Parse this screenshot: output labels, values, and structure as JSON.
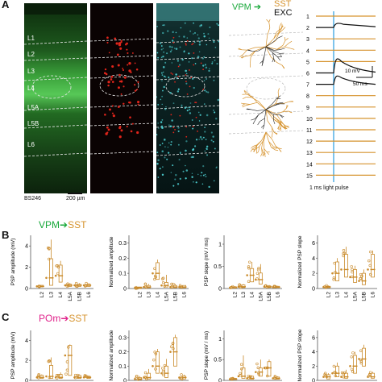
{
  "panel_a": {
    "letter": "A",
    "layers": [
      "L1",
      "L2",
      "L3",
      "L4",
      "L5A",
      "L5B",
      "L6"
    ],
    "slice_id": "BS246",
    "scalebar": "200 µm",
    "legend": {
      "source": "VPM",
      "target": "SST",
      "other": "EXC"
    },
    "trace_numbers": [
      "1",
      "2",
      "3",
      "4",
      "5",
      "6",
      "7",
      "8",
      "9",
      "10",
      "11",
      "12",
      "13",
      "14",
      "15"
    ],
    "amp_scale": "10 mV",
    "time_scale": "50 ms",
    "pulse_label": "1 ms light pulse",
    "colors": {
      "green": "#2aa02a",
      "red": "#e0251b",
      "cyan": "#4fd3d6",
      "orange": "#d6932e",
      "blue": "#2a9de0"
    }
  },
  "panel_b": {
    "letter": "B",
    "condition": {
      "source": "VPM",
      "target": "SST",
      "source_color": "#18a83a"
    }
  },
  "panel_c": {
    "letter": "C",
    "condition": {
      "source": "POm",
      "target": "SST",
      "source_color": "#e0248c"
    }
  },
  "chart_data": [
    {
      "type": "box",
      "panel": "B",
      "ylabel": "PSP amplitude (mV)",
      "categories": [
        "L2",
        "L3",
        "L4",
        "L5A",
        "L5B",
        "L6"
      ],
      "yticks": [
        0,
        2,
        4
      ],
      "ylim": [
        0,
        5
      ],
      "medians": [
        0.2,
        1.0,
        1.2,
        0.3,
        0.3,
        0.3
      ],
      "q1": [
        0.15,
        0.3,
        0.6,
        0.2,
        0.2,
        0.2
      ],
      "q3": [
        0.3,
        2.8,
        2.2,
        0.4,
        0.4,
        0.4
      ],
      "max": [
        0.3,
        4.6,
        2.6,
        0.5,
        0.5,
        0.5
      ]
    },
    {
      "type": "box",
      "panel": "B",
      "ylabel": "Normalized amplitude",
      "categories": [
        "L2",
        "L3",
        "L4",
        "L5A",
        "L5B",
        "L6"
      ],
      "yticks": [
        0,
        0.1,
        0.2,
        0.3
      ],
      "ylim": [
        0,
        0.35
      ],
      "medians": [
        0.005,
        0.01,
        0.1,
        0.02,
        0.01,
        0.01
      ],
      "q1": [
        0.0,
        0.005,
        0.06,
        0.01,
        0.005,
        0.005
      ],
      "q3": [
        0.01,
        0.02,
        0.17,
        0.04,
        0.02,
        0.02
      ],
      "max": [
        0.01,
        0.03,
        0.19,
        0.09,
        0.03,
        0.02
      ]
    },
    {
      "type": "box",
      "panel": "B",
      "ylabel": "PSP slope (mV / ms)",
      "categories": [
        "L2",
        "L3",
        "L4",
        "L5A",
        "L5B",
        "L6"
      ],
      "yticks": [
        0,
        0.5,
        1
      ],
      "ylim": [
        0,
        1.2
      ],
      "medians": [
        0.02,
        0.04,
        0.3,
        0.2,
        0.04,
        0.03
      ],
      "q1": [
        0.01,
        0.02,
        0.15,
        0.1,
        0.02,
        0.02
      ],
      "q3": [
        0.04,
        0.08,
        0.45,
        0.35,
        0.06,
        0.05
      ],
      "max": [
        0.05,
        0.1,
        0.6,
        0.55,
        0.08,
        0.06
      ]
    },
    {
      "type": "box",
      "panel": "B",
      "ylabel": "Normalized PSP slope",
      "categories": [
        "L2",
        "L3",
        "L4",
        "L5A",
        "L5B",
        "L6"
      ],
      "yticks": [
        0,
        2,
        4,
        6
      ],
      "ylim": [
        0,
        7
      ],
      "medians": [
        0.2,
        2.0,
        2.5,
        1.5,
        1.0,
        2.5
      ],
      "q1": [
        0.1,
        1.0,
        1.5,
        0.8,
        0.5,
        1.5
      ],
      "q3": [
        0.3,
        3.5,
        4.5,
        2.5,
        2.0,
        4.5
      ],
      "max": [
        0.4,
        4.0,
        5.5,
        3.0,
        2.5,
        5.0
      ]
    },
    {
      "type": "box",
      "panel": "C",
      "ylabel": "PSP amplitude (mV)",
      "categories": [
        "L2",
        "L3",
        "L4",
        "L5A",
        "L5B",
        "L6"
      ],
      "yticks": [
        0,
        2,
        4
      ],
      "ylim": [
        0,
        5
      ],
      "medians": [
        0.3,
        0.4,
        0.3,
        2.5,
        0.3,
        0.3
      ],
      "q1": [
        0.2,
        0.2,
        0.2,
        0.5,
        0.2,
        0.2
      ],
      "q3": [
        0.5,
        1.5,
        0.6,
        3.5,
        0.5,
        0.4
      ],
      "max": [
        0.6,
        2.3,
        0.8,
        3.6,
        0.6,
        0.5
      ]
    },
    {
      "type": "box",
      "panel": "C",
      "ylabel": "Normalized amplitude",
      "categories": [
        "L2",
        "L3",
        "L4",
        "L5A",
        "L5B",
        "L6"
      ],
      "yticks": [
        0,
        0.1,
        0.2,
        0.3
      ],
      "ylim": [
        0,
        0.35
      ],
      "medians": [
        0.01,
        0.02,
        0.1,
        0.05,
        0.2,
        0.02
      ],
      "q1": [
        0.005,
        0.01,
        0.05,
        0.02,
        0.1,
        0.01
      ],
      "q3": [
        0.02,
        0.05,
        0.2,
        0.1,
        0.3,
        0.03
      ],
      "max": [
        0.03,
        0.08,
        0.22,
        0.15,
        0.32,
        0.04
      ]
    },
    {
      "type": "box",
      "panel": "C",
      "ylabel": "PSP slope (mV / ms)",
      "categories": [
        "L2",
        "L3",
        "L4",
        "L5A",
        "L5B",
        "L6"
      ],
      "yticks": [
        0,
        0.5,
        1
      ],
      "ylim": [
        0,
        1.2
      ],
      "medians": [
        0.03,
        0.1,
        0.05,
        0.2,
        0.3,
        0.05
      ],
      "q1": [
        0.02,
        0.05,
        0.03,
        0.1,
        0.1,
        0.03
      ],
      "q3": [
        0.05,
        0.3,
        0.1,
        0.3,
        0.45,
        0.08
      ],
      "max": [
        0.06,
        0.6,
        0.12,
        0.5,
        0.5,
        0.1
      ]
    },
    {
      "type": "box",
      "panel": "C",
      "ylabel": "Normalized PSP slope",
      "categories": [
        "L2",
        "L3",
        "L4",
        "L5A",
        "L5B",
        "L6"
      ],
      "yticks": [
        0,
        2,
        4,
        6
      ],
      "ylim": [
        0,
        7
      ],
      "medians": [
        0.5,
        1.0,
        0.5,
        2.0,
        3.0,
        0.5
      ],
      "q1": [
        0.2,
        0.5,
        0.3,
        1.0,
        2.0,
        0.3
      ],
      "q3": [
        0.8,
        2.0,
        1.0,
        3.5,
        4.5,
        1.0
      ],
      "max": [
        1.0,
        2.5,
        1.5,
        4.0,
        5.0,
        1.2
      ]
    }
  ]
}
